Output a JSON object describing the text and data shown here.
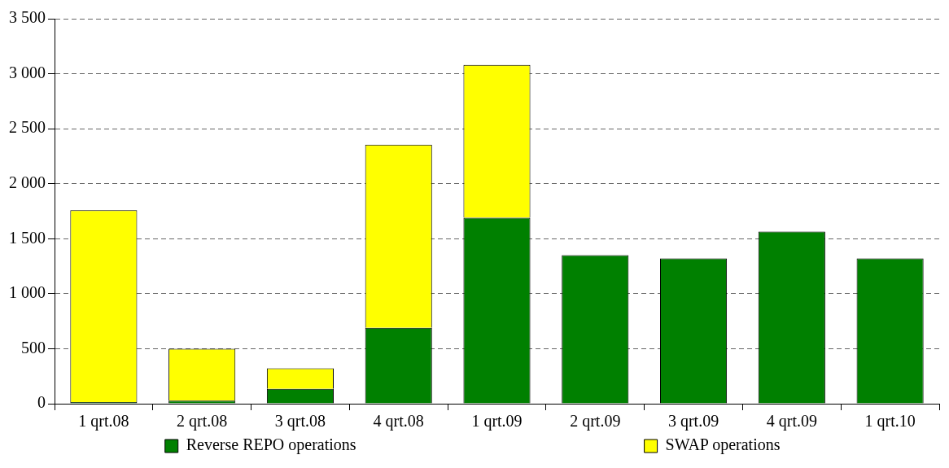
{
  "chart_data": {
    "type": "bar",
    "stacked": true,
    "categories": [
      "1 qrt.08",
      "2 qrt.08",
      "3 qrt.08",
      "4 qrt.08",
      "1 qrt.09",
      "2 qrt.09",
      "3 qrt.09",
      "4 qrt.09",
      "1 qrt.10"
    ],
    "series": [
      {
        "name": "Reverse REPO operations",
        "color": "#008000",
        "values": [
          15,
          27,
          135,
          690,
          1690,
          1350,
          1320,
          1565,
          1320
        ]
      },
      {
        "name": "SWAP operations",
        "color": "#ffff00",
        "values": [
          1745,
          473,
          186,
          1665,
          1390,
          0,
          0,
          0,
          0
        ]
      }
    ],
    "ylim": [
      0,
      3500
    ],
    "yticks": [
      0,
      {
        "value": 500,
        "label": "500"
      },
      {
        "value": 1000,
        "label": "1 000"
      },
      {
        "value": 1500,
        "label": "1 500"
      },
      {
        "value": 2000,
        "label": "2 000"
      },
      {
        "value": 2500,
        "label": "2 500"
      },
      {
        "value": 3000,
        "label": "3 000"
      },
      {
        "value": 3500,
        "label": "3 500"
      }
    ],
    "grid": "y",
    "legend": "bottom"
  }
}
